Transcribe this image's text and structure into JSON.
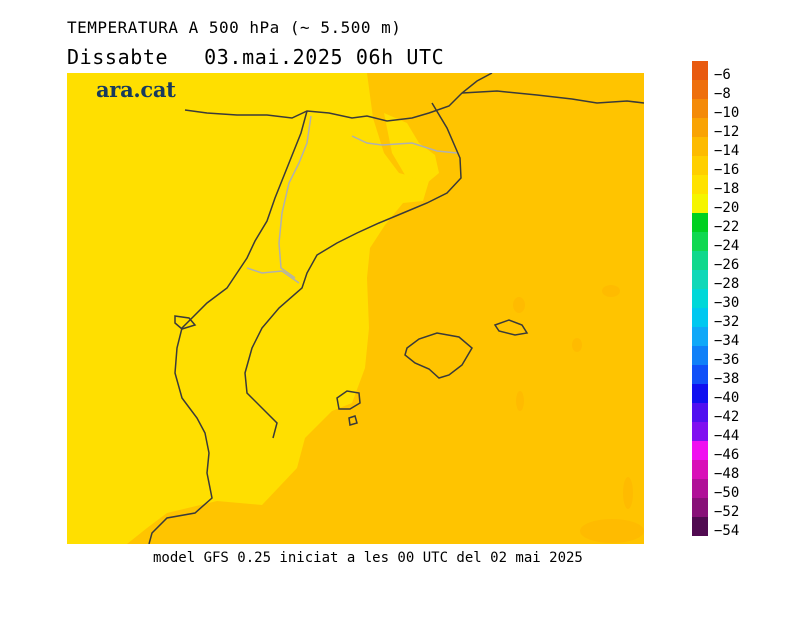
{
  "header": {
    "title": "TEMPERATURA A 500 hPa (~ 5.500 m)",
    "day": "Dissabte",
    "datetime": "03.mai.2025 06h UTC"
  },
  "logo": {
    "text": "ara.cat"
  },
  "footer": {
    "model": "model GFS 0.25 iniciat a les 00 UTC del 02 mai 2025"
  },
  "colorbar": {
    "entries": [
      {
        "label": "-6",
        "color": "#e85a10"
      },
      {
        "label": "-8",
        "color": "#ee6f0c"
      },
      {
        "label": "-10",
        "color": "#f48a08"
      },
      {
        "label": "-12",
        "color": "#f9a304"
      },
      {
        "label": "-14",
        "color": "#fdbb01"
      },
      {
        "label": "-16",
        "color": "#ffcf00"
      },
      {
        "label": "-18",
        "color": "#ffe200"
      },
      {
        "label": "-20",
        "color": "#f5f500"
      },
      {
        "label": "-22",
        "color": "#00d020"
      },
      {
        "label": "-24",
        "color": "#10d850"
      },
      {
        "label": "-26",
        "color": "#10d88c"
      },
      {
        "label": "-28",
        "color": "#10d8b8"
      },
      {
        "label": "-30",
        "color": "#00d8d8"
      },
      {
        "label": "-32",
        "color": "#00c8f0"
      },
      {
        "label": "-34",
        "color": "#10a8f8"
      },
      {
        "label": "-36",
        "color": "#1080f8"
      },
      {
        "label": "-38",
        "color": "#1050f8"
      },
      {
        "label": "-40",
        "color": "#1010f0"
      },
      {
        "label": "-42",
        "color": "#5010f0"
      },
      {
        "label": "-44",
        "color": "#8010f0"
      },
      {
        "label": "-46",
        "color": "#f010f0"
      },
      {
        "label": "-48",
        "color": "#d810b8"
      },
      {
        "label": "-50",
        "color": "#b01098"
      },
      {
        "label": "-52",
        "color": "#881078"
      },
      {
        "label": "-54",
        "color": "#500a50"
      }
    ]
  },
  "map_fill": {
    "west_color": "#ffdf00",
    "east_color": "#ffc400",
    "border_color": "#3a3a3a",
    "internal_border_color": "#b0b0b0"
  }
}
